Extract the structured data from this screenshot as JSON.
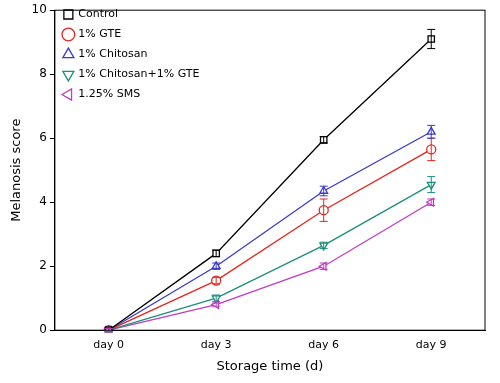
{
  "chart_data": {
    "type": "line",
    "x_label": "Storage time (d)",
    "y_label": "Melanosis score",
    "categories": [
      "day 0",
      "day 3",
      "day 6",
      "day 9"
    ],
    "series": [
      {
        "name": "Control",
        "color": "#000000",
        "marker": "square",
        "values": [
          0,
          2.4,
          5.95,
          9.1
        ],
        "errors": [
          0.05,
          0.1,
          0.1,
          0.3
        ]
      },
      {
        "name": "1% GTE",
        "color": "#e8251f",
        "marker": "circle",
        "values": [
          0,
          1.55,
          3.75,
          5.65
        ],
        "errors": [
          0.05,
          0.1,
          0.35,
          0.35
        ]
      },
      {
        "name": "1% Chitosan",
        "color": "#3a3ad0",
        "marker": "triangle",
        "values": [
          0,
          2.0,
          4.35,
          6.2
        ],
        "errors": [
          0.05,
          0.1,
          0.15,
          0.2
        ]
      },
      {
        "name": "1% Chitosan+1% GTE",
        "color": "#1a8f7a",
        "marker": "triangle-down",
        "values": [
          0,
          1.0,
          2.65,
          4.55
        ],
        "errors": [
          0.05,
          0.1,
          0.1,
          0.25
        ]
      },
      {
        "name": "1.25% SMS",
        "color": "#c43ac4",
        "marker": "triangle-left",
        "values": [
          0,
          0.8,
          2.0,
          4.0
        ],
        "errors": [
          0.05,
          0.05,
          0.1,
          0.1
        ]
      }
    ],
    "ylim": [
      0,
      10
    ],
    "yticks": [
      0,
      2,
      4,
      6,
      8,
      10
    ],
    "grid": false,
    "legend": "upper left"
  }
}
